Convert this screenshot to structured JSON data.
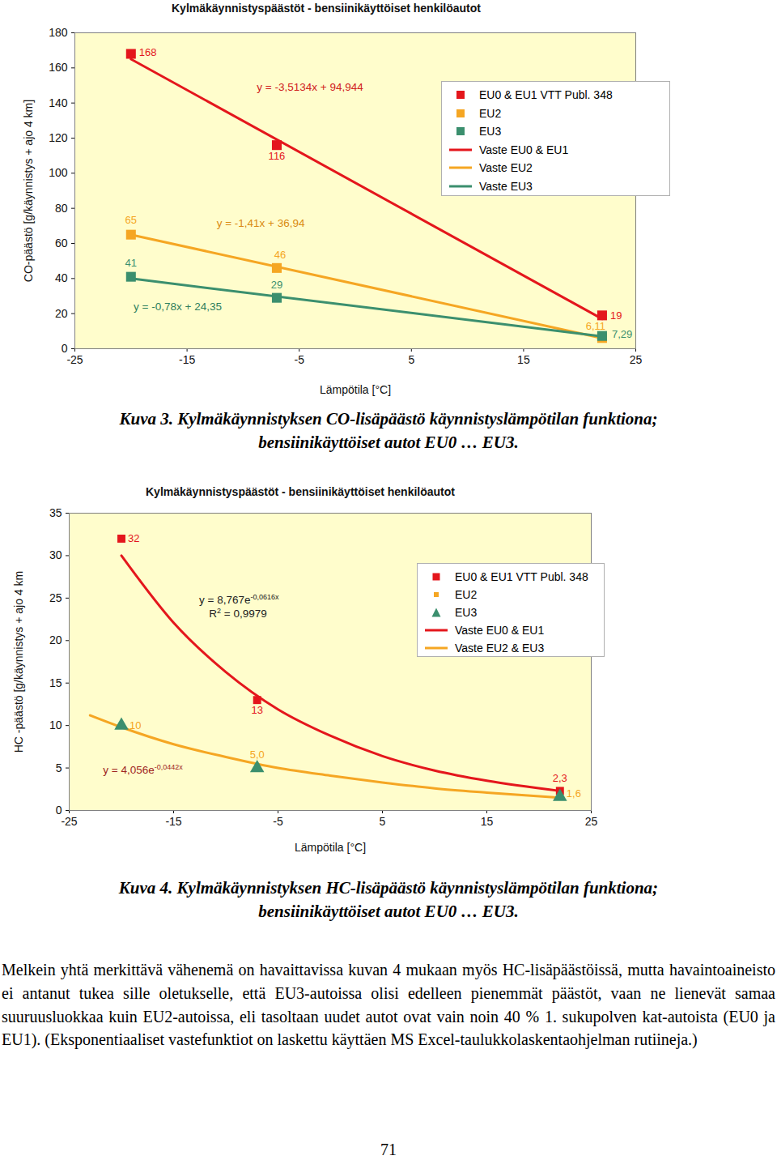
{
  "chart_data": [
    {
      "type": "scatter",
      "title": "Kylmäkäynnistyspäästöt - bensiinikäyttöiset henkilöautot",
      "x_label": "Lämpötila [°C]",
      "y_label": "CO-päästö [g/käynnistys + ajo 4 km]",
      "xlim": [
        -25,
        25
      ],
      "xticks": [
        -25,
        -15,
        -5,
        5,
        15,
        25
      ],
      "ylim": [
        0,
        180
      ],
      "yticks": [
        0,
        20,
        40,
        60,
        80,
        100,
        120,
        140,
        160,
        180
      ],
      "grid": false,
      "legend": "upper right",
      "data_labels": true,
      "series": [
        {
          "name": "EU0 & EU1 VTT Publ. 348",
          "type": "scatter",
          "marker": "square",
          "color": "#e4161c",
          "x": [
            -20,
            -7,
            22
          ],
          "values": [
            168,
            116,
            19
          ],
          "value_labels": [
            "168",
            "116",
            "19"
          ]
        },
        {
          "name": "EU2",
          "type": "scatter",
          "marker": "square",
          "color": "#f5a623",
          "x": [
            -20,
            -7,
            22
          ],
          "values": [
            65,
            46,
            6.11
          ],
          "value_labels": [
            "65",
            "46",
            "6,11"
          ]
        },
        {
          "name": "EU3",
          "type": "scatter",
          "marker": "square",
          "color": "#3b8f6e",
          "x": [
            -20,
            -7,
            22
          ],
          "values": [
            41,
            29,
            7.29
          ],
          "value_labels": [
            "41",
            "29",
            "7,29"
          ]
        },
        {
          "name": "Vaste EU0 & EU1",
          "type": "line",
          "color": "#e4161c",
          "x": [
            -20,
            22
          ],
          "values": [
            165,
            17
          ]
        },
        {
          "name": "Vaste EU2",
          "type": "line",
          "color": "#f5a623",
          "x": [
            -20,
            22
          ],
          "values": [
            65,
            6
          ]
        },
        {
          "name": "Vaste EU3",
          "type": "line",
          "color": "#3b8f6e",
          "x": [
            -20,
            22
          ],
          "values": [
            40,
            7
          ]
        }
      ],
      "annotations": [
        {
          "parts": [
            "y = -3,5134x + 94,944"
          ]
        },
        {
          "parts": [
            "y = -1,41x + 36,94"
          ]
        },
        {
          "parts": [
            "y = -0,78x + 24,35"
          ]
        }
      ]
    },
    {
      "type": "scatter",
      "title": "Kylmäkäynnistyspäästöt - bensiinikäyttöiset henkilöautot",
      "x_label": "Lämpötila [°C]",
      "y_label": "HC -päästö [g/käynnistys + ajo 4 km",
      "xlim": [
        -25,
        25
      ],
      "xticks": [
        -25,
        -15,
        -5,
        5,
        15,
        25
      ],
      "ylim": [
        0,
        35
      ],
      "yticks": [
        0,
        5,
        10,
        15,
        20,
        25,
        30,
        35
      ],
      "grid": false,
      "legend": "upper right",
      "data_labels": true,
      "series": [
        {
          "name": "EU0 & EU1 VTT Publ. 348",
          "type": "scatter",
          "marker": "square",
          "color": "#e4161c",
          "x": [
            -20,
            -7,
            22
          ],
          "values": [
            32,
            13,
            2.3
          ],
          "value_labels": [
            "32",
            "13",
            "2,3"
          ]
        },
        {
          "name": "EU2",
          "type": "scatter",
          "marker": "square",
          "color": "#f5a623",
          "x": [
            -20,
            -7,
            22
          ],
          "values": [
            10,
            5.0,
            1.6
          ],
          "value_labels": [
            "10",
            "5,0",
            "1,6"
          ]
        },
        {
          "name": "EU3",
          "type": "scatter",
          "marker": "triangle",
          "color": "#3b8f6e",
          "x": [
            -20,
            -7,
            22
          ],
          "values": [
            10,
            5.0,
            1.6
          ]
        },
        {
          "name": "Vaste EU0 & EU1",
          "type": "line",
          "color": "#e4161c",
          "x": [
            -20,
            -15,
            -10,
            -5,
            0,
            5,
            10,
            15,
            22
          ],
          "values": [
            30.0,
            22.1,
            16.3,
            11.9,
            8.8,
            6.4,
            4.7,
            3.5,
            2.3
          ]
        },
        {
          "name": "Vaste EU2 & EU3",
          "type": "line",
          "color": "#f5a623",
          "x": [
            -23,
            -20,
            -15,
            -10,
            -5,
            0,
            5,
            10,
            15,
            22
          ],
          "values": [
            11.2,
            9.8,
            7.8,
            6.3,
            5.0,
            4.1,
            3.3,
            2.6,
            2.1,
            1.5
          ]
        }
      ],
      "annotations": [
        {
          "parts": [
            "y = 8,767e",
            "-0,0616x"
          ]
        },
        {
          "parts": [
            "R",
            "2",
            " = 0,9979"
          ]
        },
        {
          "parts": [
            "y = 4,056e",
            "-0,0442x"
          ]
        }
      ]
    }
  ],
  "captions": [
    [
      "Kuva 3. Kylmäkäynnistyksen CO-lisäpäästö käynnistyslämpötilan funktiona;",
      "bensiinikäyttöiset autot EU0 … EU3."
    ],
    [
      "Kuva 4. Kylmäkäynnistyksen HC-lisäpäästö käynnistyslämpötilan funktiona;",
      "bensiinikäyttöiset autot EU0 … EU3."
    ]
  ],
  "body_text": "Melkein yhtä merkittävä vähenemä on havaittavissa kuvan 4 mukaan myös HC-lisäpäästöissä, mutta havaintoaineisto ei antanut tukea sille oletukselle, että EU3-autoissa olisi edelleen pienemmät päästöt, vaan ne lienevät samaa suuruusluokkaa kuin EU2-autoissa, eli tasoltaan uudet autot ovat vain noin 40 % 1. sukupolven kat-autoista (EU0 ja EU1). (Eksponentiaaliset vastefunktiot on laskettu käyttäen MS Excel-taulukkolaskentaohjelman rutiineja.)",
  "page_number": "71"
}
